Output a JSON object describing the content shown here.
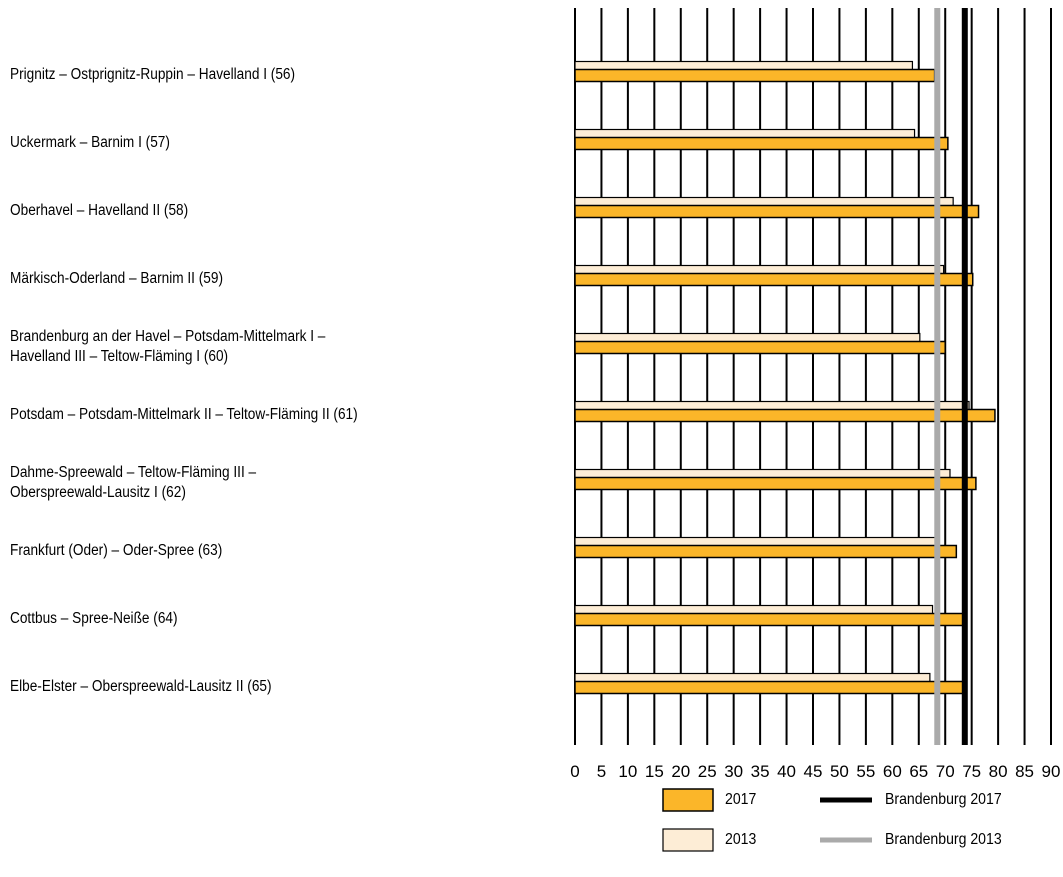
{
  "chart_data": {
    "type": "bar",
    "orientation": "horizontal",
    "categories": [
      [
        "Prignitz – Ostprignitz-Ruppin – Havelland I (56)"
      ],
      [
        "Uckermark – Barnim I (57)"
      ],
      [
        "Oberhavel – Havelland II (58)"
      ],
      [
        "Märkisch-Oderland – Barnim II (59)"
      ],
      [
        "Brandenburg an der Havel – Potsdam-Mittelmark I –",
        "Havelland III – Teltow-Fläming I (60)"
      ],
      [
        "Potsdam – Potsdam-Mittelmark II – Teltow-Fläming II (61)"
      ],
      [
        "Dahme-Spreewald – Teltow-Fläming III –",
        "Oberspreewald-Lausitz I (62)"
      ],
      [
        "Frankfurt (Oder) – Oder-Spree (63)"
      ],
      [
        "Cottbus – Spree-Neiße (64)"
      ],
      [
        "Elbe-Elster – Oberspreewald-Lausitz II (65)"
      ]
    ],
    "series": [
      {
        "name": "2017",
        "color": "#FBB629",
        "values": [
          68.0,
          70.5,
          76.3,
          75.2,
          70.0,
          79.4,
          75.8,
          72.1,
          73.5,
          73.6
        ]
      },
      {
        "name": "2013",
        "color": "#FDEDD6",
        "values": [
          63.8,
          64.2,
          71.5,
          69.7,
          65.2,
          74.5,
          70.9,
          68.3,
          67.6,
          67.1
        ]
      }
    ],
    "reference_lines": [
      {
        "name": "Brandenburg 2017",
        "value": 73.7,
        "color": "#000000"
      },
      {
        "name": "Brandenburg 2013",
        "value": 68.5,
        "color": "#AAAAAA"
      }
    ],
    "xlim": [
      0,
      90
    ],
    "xticks": [
      0,
      5,
      10,
      15,
      20,
      25,
      30,
      35,
      40,
      45,
      50,
      55,
      60,
      65,
      70,
      75,
      80,
      85,
      90
    ],
    "grid": true,
    "legend_position": "bottom-right",
    "title": "",
    "xlabel": "",
    "ylabel": ""
  }
}
